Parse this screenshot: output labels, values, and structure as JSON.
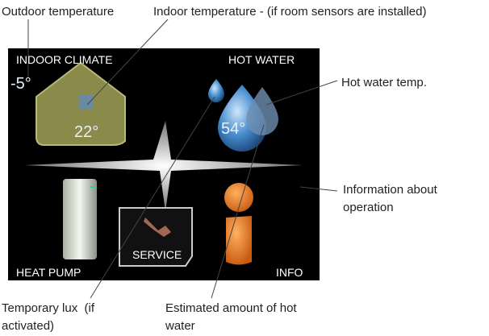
{
  "annotations": {
    "outdoor_temperature": "Outdoor temperature",
    "indoor_temperature": "Indoor temperature - (if room sensors are installed)",
    "hot_water_temp": "Hot water temp.",
    "information": "Information about operation",
    "temporary_lux": "Temporary lux  (if activated)",
    "estimated_hot_water": "Estimated amount of hot water"
  },
  "screen": {
    "indoor_climate": "INDOOR CLIMATE",
    "hot_water": "HOT WATER",
    "outdoor_value": "-5°",
    "indoor_value": "22°",
    "hot_water_value": "54°",
    "heat_pump": "HEAT PUMP",
    "service": "SERVICE",
    "info": "INFO"
  }
}
